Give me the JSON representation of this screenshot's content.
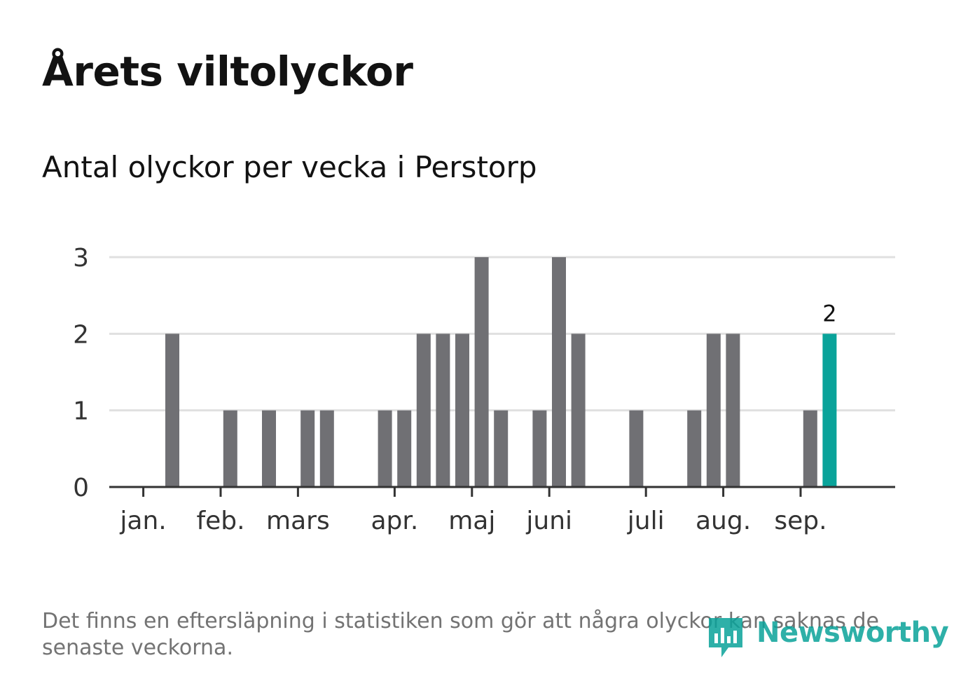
{
  "title": "Årets viltolyckor",
  "subtitle": "Antal olyckor per vecka i Perstorp",
  "footnote": "Det finns en eftersläpning i statistiken som gör att några olyckor kan saknas de senaste veckorna.",
  "logo": {
    "text": "Newsworthy",
    "icon": "newsworthy-logo-icon"
  },
  "colors": {
    "bar": "#707074",
    "highlight": "#0aa39a",
    "grid": "#e0e0e0",
    "axis": "#333333",
    "text": "#333333"
  },
  "chart_data": {
    "type": "bar",
    "title": "Antal olyckor per vecka i Perstorp",
    "xlabel": "",
    "ylabel": "",
    "ylim": [
      0,
      3
    ],
    "yticks": [
      0,
      1,
      2,
      3
    ],
    "grid": true,
    "legend": "none",
    "weeks": [
      1,
      2,
      3,
      4,
      5,
      6,
      7,
      8,
      9,
      10,
      11,
      12,
      13,
      14,
      15,
      16,
      17,
      18,
      19,
      20,
      21,
      22,
      23,
      24,
      25,
      26,
      27,
      28,
      29,
      30,
      31,
      32,
      33,
      34,
      35,
      36,
      37,
      38
    ],
    "values": [
      0,
      2,
      0,
      0,
      1,
      0,
      1,
      0,
      1,
      1,
      0,
      0,
      1,
      1,
      2,
      2,
      2,
      3,
      1,
      0,
      1,
      3,
      2,
      0,
      0,
      1,
      0,
      0,
      1,
      2,
      2,
      0,
      0,
      0,
      1,
      2,
      0,
      0
    ],
    "month_ticks": [
      {
        "label": "jan.",
        "week": 0.5
      },
      {
        "label": "feb.",
        "week": 4.5
      },
      {
        "label": "mars",
        "week": 8.5
      },
      {
        "label": "apr.",
        "week": 13.5
      },
      {
        "label": "maj",
        "week": 17.5
      },
      {
        "label": "juni",
        "week": 21.5
      },
      {
        "label": "juli",
        "week": 26.5
      },
      {
        "label": "aug.",
        "week": 30.5
      },
      {
        "label": "sep.",
        "week": 34.5
      }
    ],
    "highlight": {
      "week": 36,
      "value": 2,
      "label": "2"
    }
  }
}
